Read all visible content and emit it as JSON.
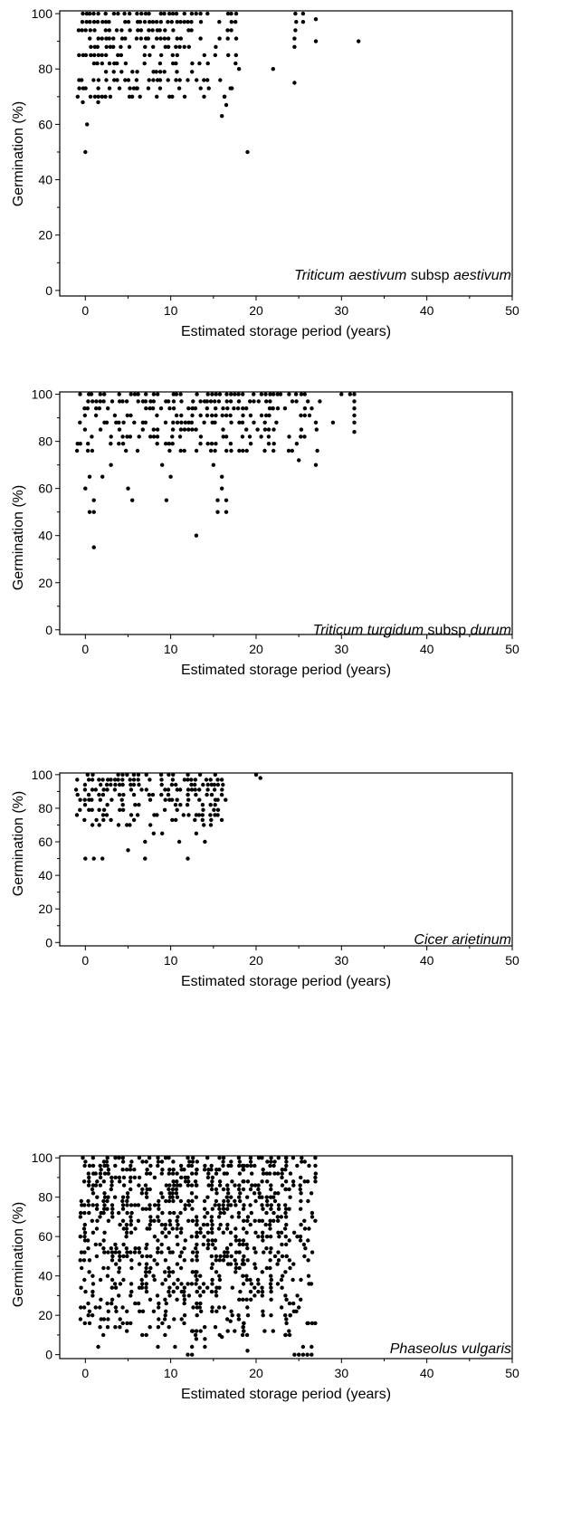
{
  "chart_data": [
    {
      "type": "scatter",
      "xlabel": "Estimated storage period (years)",
      "ylabel": "Germination (%)",
      "xlim": [
        -3,
        50
      ],
      "ylim": [
        -2,
        101
      ],
      "xticks": [
        0,
        10,
        20,
        30,
        40,
        50
      ],
      "yticks": [
        0,
        20,
        40,
        60,
        80,
        100
      ],
      "annotation": {
        "genus": "Triticum",
        "species": "aestivum",
        "rank": "subsp",
        "subspecies": "aestivum"
      },
      "generator": {
        "bands": [
          [
            -0.8,
            6.5
          ],
          [
            7,
            12.5
          ],
          [
            13,
            18.5
          ]
        ],
        "ymin": 70,
        "density": 0.7,
        "xmax": 18
      },
      "series": [
        {
          "points": [
            [
              0,
              50
            ],
            [
              0.2,
              60
            ],
            [
              -0.3,
              68
            ],
            [
              0.6,
              70
            ],
            [
              1.5,
              68
            ],
            [
              4,
              73
            ],
            [
              6,
              73
            ],
            [
              11,
              73
            ],
            [
              16,
              63
            ],
            [
              16.5,
              67
            ],
            [
              16.3,
              70
            ],
            [
              17,
              73
            ],
            [
              19,
              50
            ],
            [
              18,
              80
            ],
            [
              22,
              80
            ],
            [
              24.5,
              75
            ],
            [
              24.5,
              88
            ],
            [
              24.5,
              91
            ],
            [
              24.6,
              94
            ],
            [
              24.7,
              97
            ],
            [
              24.6,
              100
            ],
            [
              25.5,
              100
            ],
            [
              25.5,
              97
            ],
            [
              27,
              98
            ],
            [
              27,
              90
            ],
            [
              32,
              90
            ]
          ]
        }
      ]
    },
    {
      "type": "scatter",
      "xlabel": "Estimated storage period (years)",
      "ylabel": "Germination (%)",
      "xlim": [
        -3,
        50
      ],
      "ylim": [
        -2,
        101
      ],
      "xticks": [
        0,
        10,
        20,
        30,
        40,
        50
      ],
      "yticks": [
        0,
        20,
        40,
        60,
        80,
        100
      ],
      "annotation": {
        "genus": "Triticum",
        "species": "turgidum",
        "rank": "subsp",
        "subspecies": "durum"
      },
      "generator": {
        "bands": [
          [
            -1,
            22
          ],
          [
            22,
            28
          ]
        ],
        "ymin": 75,
        "density": 0.6,
        "xmax": 27.5
      },
      "series": [
        {
          "points": [
            [
              1,
              35
            ],
            [
              13,
              40
            ],
            [
              0.5,
              50
            ],
            [
              1,
              50
            ],
            [
              15.5,
              50
            ],
            [
              16.5,
              50
            ],
            [
              1,
              55
            ],
            [
              5.5,
              55
            ],
            [
              9.5,
              55
            ],
            [
              15.5,
              55
            ],
            [
              16.5,
              55
            ],
            [
              0,
              60
            ],
            [
              5,
              60
            ],
            [
              16,
              60
            ],
            [
              0.5,
              65
            ],
            [
              2,
              65
            ],
            [
              10,
              65
            ],
            [
              16,
              65
            ],
            [
              3,
              70
            ],
            [
              9,
              70
            ],
            [
              15,
              70
            ],
            [
              29,
              88
            ],
            [
              30,
              100
            ],
            [
              31,
              100
            ],
            [
              31.5,
              100
            ],
            [
              31.5,
              97
            ],
            [
              31.5,
              94
            ],
            [
              31.5,
              91
            ],
            [
              31.5,
              88
            ],
            [
              31.5,
              84
            ],
            [
              25,
              72
            ],
            [
              27,
              70
            ]
          ]
        }
      ]
    },
    {
      "type": "scatter",
      "xlabel": "Estimated storage period (years)",
      "ylabel": "Germination (%)",
      "xlim": [
        -3,
        50
      ],
      "ylim": [
        -2,
        101
      ],
      "xticks": [
        0,
        10,
        20,
        30,
        40,
        50
      ],
      "yticks": [
        0,
        20,
        40,
        60,
        80,
        100
      ],
      "annotation": {
        "genus": "Cicer",
        "species": "arietinum",
        "rank": "",
        "subspecies": ""
      },
      "generator": {
        "bands": [
          [
            -1,
            16.5
          ]
        ],
        "ymin": 70,
        "density": 0.55,
        "xmax": 16.5
      },
      "series": [
        {
          "points": [
            [
              0,
              50
            ],
            [
              1,
              50
            ],
            [
              2,
              50
            ],
            [
              7,
              50
            ],
            [
              12,
              50
            ],
            [
              5,
              55
            ],
            [
              7,
              60
            ],
            [
              11,
              60
            ],
            [
              14,
              60
            ],
            [
              8,
              65
            ],
            [
              9,
              65
            ],
            [
              13,
              65
            ],
            [
              20,
              100
            ],
            [
              20.5,
              98
            ]
          ]
        }
      ]
    },
    {
      "type": "scatter",
      "xlabel": "Estimated storage period (years)",
      "ylabel": "Germination (%)",
      "xlim": [
        -3,
        50
      ],
      "ylim": [
        -2,
        101
      ],
      "xticks": [
        0,
        10,
        20,
        30,
        40,
        50
      ],
      "yticks": [
        0,
        20,
        40,
        60,
        80,
        100
      ],
      "annotation": {
        "genus": "Phaseolus",
        "species": "vulgaris",
        "rank": "",
        "subspecies": ""
      },
      "generator": {
        "bands": [
          [
            -0.5,
            13
          ],
          [
            13,
            18.5
          ],
          [
            18.5,
            23.5
          ],
          [
            23.5,
            27
          ]
        ],
        "ymin": 10,
        "density": 0.45,
        "xmax": 27
      },
      "series": [
        {
          "points": [
            [
              1.5,
              4
            ],
            [
              8.5,
              4
            ],
            [
              10.5,
              4
            ],
            [
              12,
              0
            ],
            [
              12.5,
              0
            ],
            [
              12.5,
              4
            ],
            [
              13,
              8
            ],
            [
              12.5,
              12
            ],
            [
              13.5,
              12
            ],
            [
              14,
              4
            ],
            [
              14,
              8
            ],
            [
              19,
              2
            ],
            [
              24.5,
              0
            ],
            [
              25,
              0
            ],
            [
              25.5,
              0
            ],
            [
              26,
              0
            ],
            [
              26.5,
              0
            ],
            [
              25.5,
              4
            ],
            [
              26.5,
              4
            ],
            [
              22,
              12
            ],
            [
              21,
              12
            ],
            [
              26,
              16
            ],
            [
              25,
              24
            ],
            [
              24,
              20
            ],
            [
              16,
              9
            ],
            [
              18,
              18
            ],
            [
              17,
              17
            ],
            [
              -0.3,
              100
            ],
            [
              2.5,
              98
            ],
            [
              2.7,
              92
            ],
            [
              3.5,
              96
            ]
          ]
        }
      ]
    }
  ]
}
